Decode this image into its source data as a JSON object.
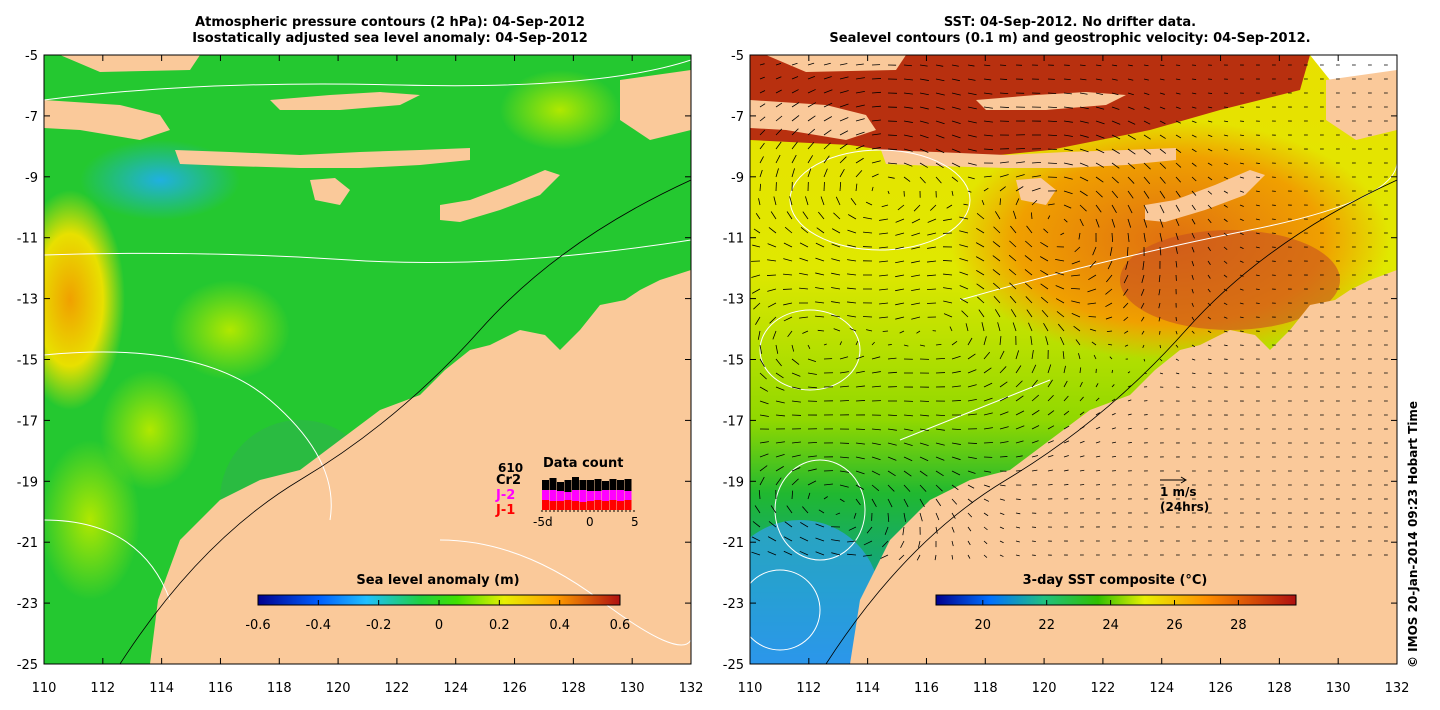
{
  "left_panel": {
    "title_line1": "Atmospheric pressure contours (2 hPa): 04-Sep-2012",
    "title_line2": "Isostatically adjusted sea level anomaly: 04-Sep-2012",
    "y_ticks": [
      "-5",
      "-7",
      "-9",
      "-11",
      "-13",
      "-15",
      "-17",
      "-19",
      "-21",
      "-23",
      "-25"
    ],
    "x_ticks": [
      "110",
      "112",
      "114",
      "116",
      "118",
      "120",
      "122",
      "124",
      "126",
      "128",
      "130",
      "132"
    ],
    "colorbar_label": "Sea level anomaly (m)",
    "colorbar_ticks": [
      "-0.6",
      "-0.4",
      "-0.2",
      "0",
      "0.2",
      "0.4",
      "0.6"
    ],
    "data_count": {
      "title": "Data count",
      "count": "610",
      "sat_cr2": "Cr2",
      "sat_j2": "J-2",
      "sat_j1": "J-1",
      "axis_labels": [
        "-5d",
        "0",
        "5"
      ],
      "colors": {
        "cr2": "#000000",
        "j2": "#ff00ff",
        "j1": "#ff0000"
      }
    }
  },
  "right_panel": {
    "title_line1": "SST: 04-Sep-2012. No drifter data.",
    "title_line2": "Sealevel contours (0.1 m) and geostrophic velocity: 04-Sep-2012.",
    "y_ticks": [
      "-5",
      "-7",
      "-9",
      "-11",
      "-13",
      "-15",
      "-17",
      "-19",
      "-21",
      "-23",
      "-25"
    ],
    "x_ticks": [
      "110",
      "112",
      "114",
      "116",
      "118",
      "120",
      "122",
      "124",
      "126",
      "128",
      "130",
      "132"
    ],
    "colorbar_label": "3-day SST composite (°C)",
    "colorbar_ticks": [
      "20",
      "22",
      "24",
      "26",
      "28"
    ],
    "velocity_label": "1 m/s",
    "velocity_sublabel": "(24hrs)"
  },
  "credit": "© IMOS 20-Jan-2014 09:23 Hobart Time",
  "colors": {
    "land": "#fac99a",
    "sea_green": "#22c922",
    "sst_warm": "#c43a10",
    "sst_yellow": "#e6e600"
  }
}
